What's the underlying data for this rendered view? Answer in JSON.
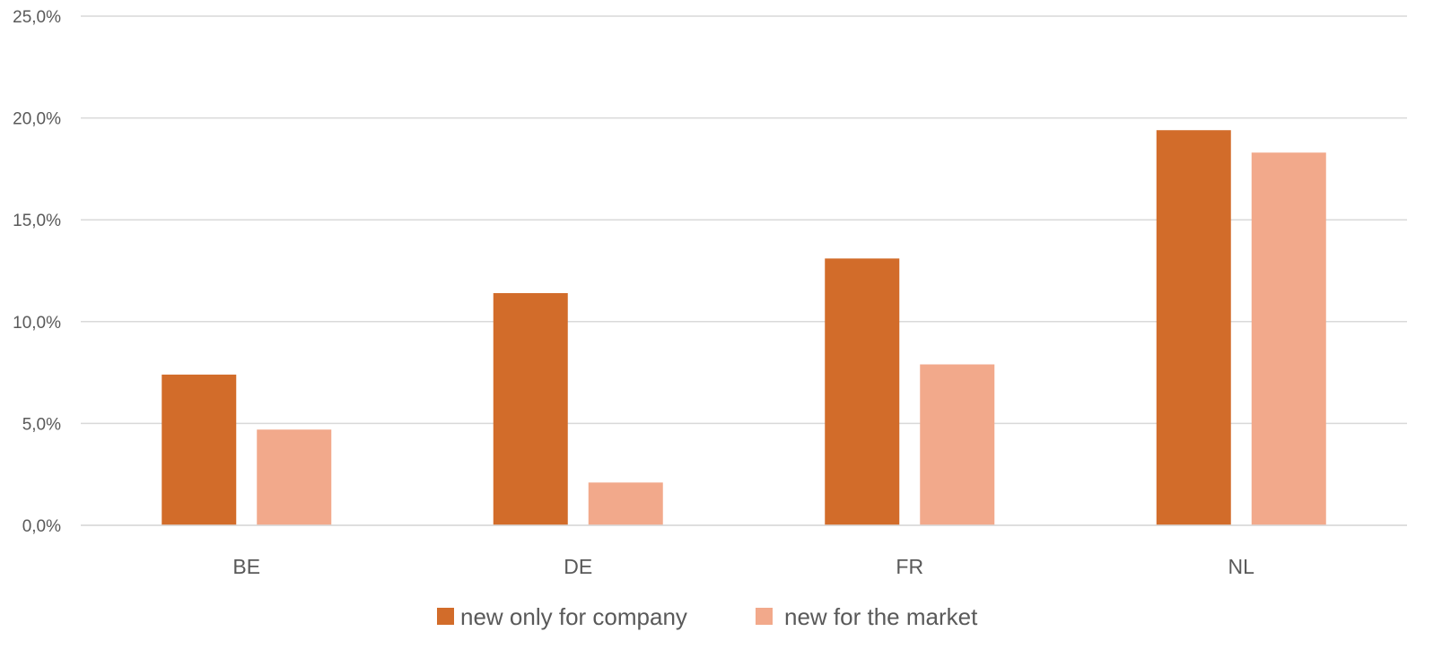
{
  "chart_data": {
    "type": "bar",
    "title": "",
    "xlabel": "",
    "ylabel": "",
    "categories": [
      "BE",
      "DE",
      "FR",
      "NL"
    ],
    "series": [
      {
        "name": "new only for company",
        "color": "#d26c2a",
        "values": [
          7.4,
          11.4,
          13.1,
          19.4
        ]
      },
      {
        "name": "new for the market",
        "color": "#f2a98b",
        "values": [
          4.7,
          2.1,
          7.9,
          18.3
        ]
      }
    ],
    "yticks": [
      {
        "value": 0,
        "label": "0,0%"
      },
      {
        "value": 5,
        "label": "5,0%"
      },
      {
        "value": 10,
        "label": "10,0%"
      },
      {
        "value": 15,
        "label": "15,0%"
      },
      {
        "value": 20,
        "label": "20,0%"
      },
      {
        "value": 25,
        "label": "25,0%"
      }
    ],
    "ylim": [
      0,
      25
    ],
    "grid": true,
    "legend_position": "bottom-center"
  }
}
